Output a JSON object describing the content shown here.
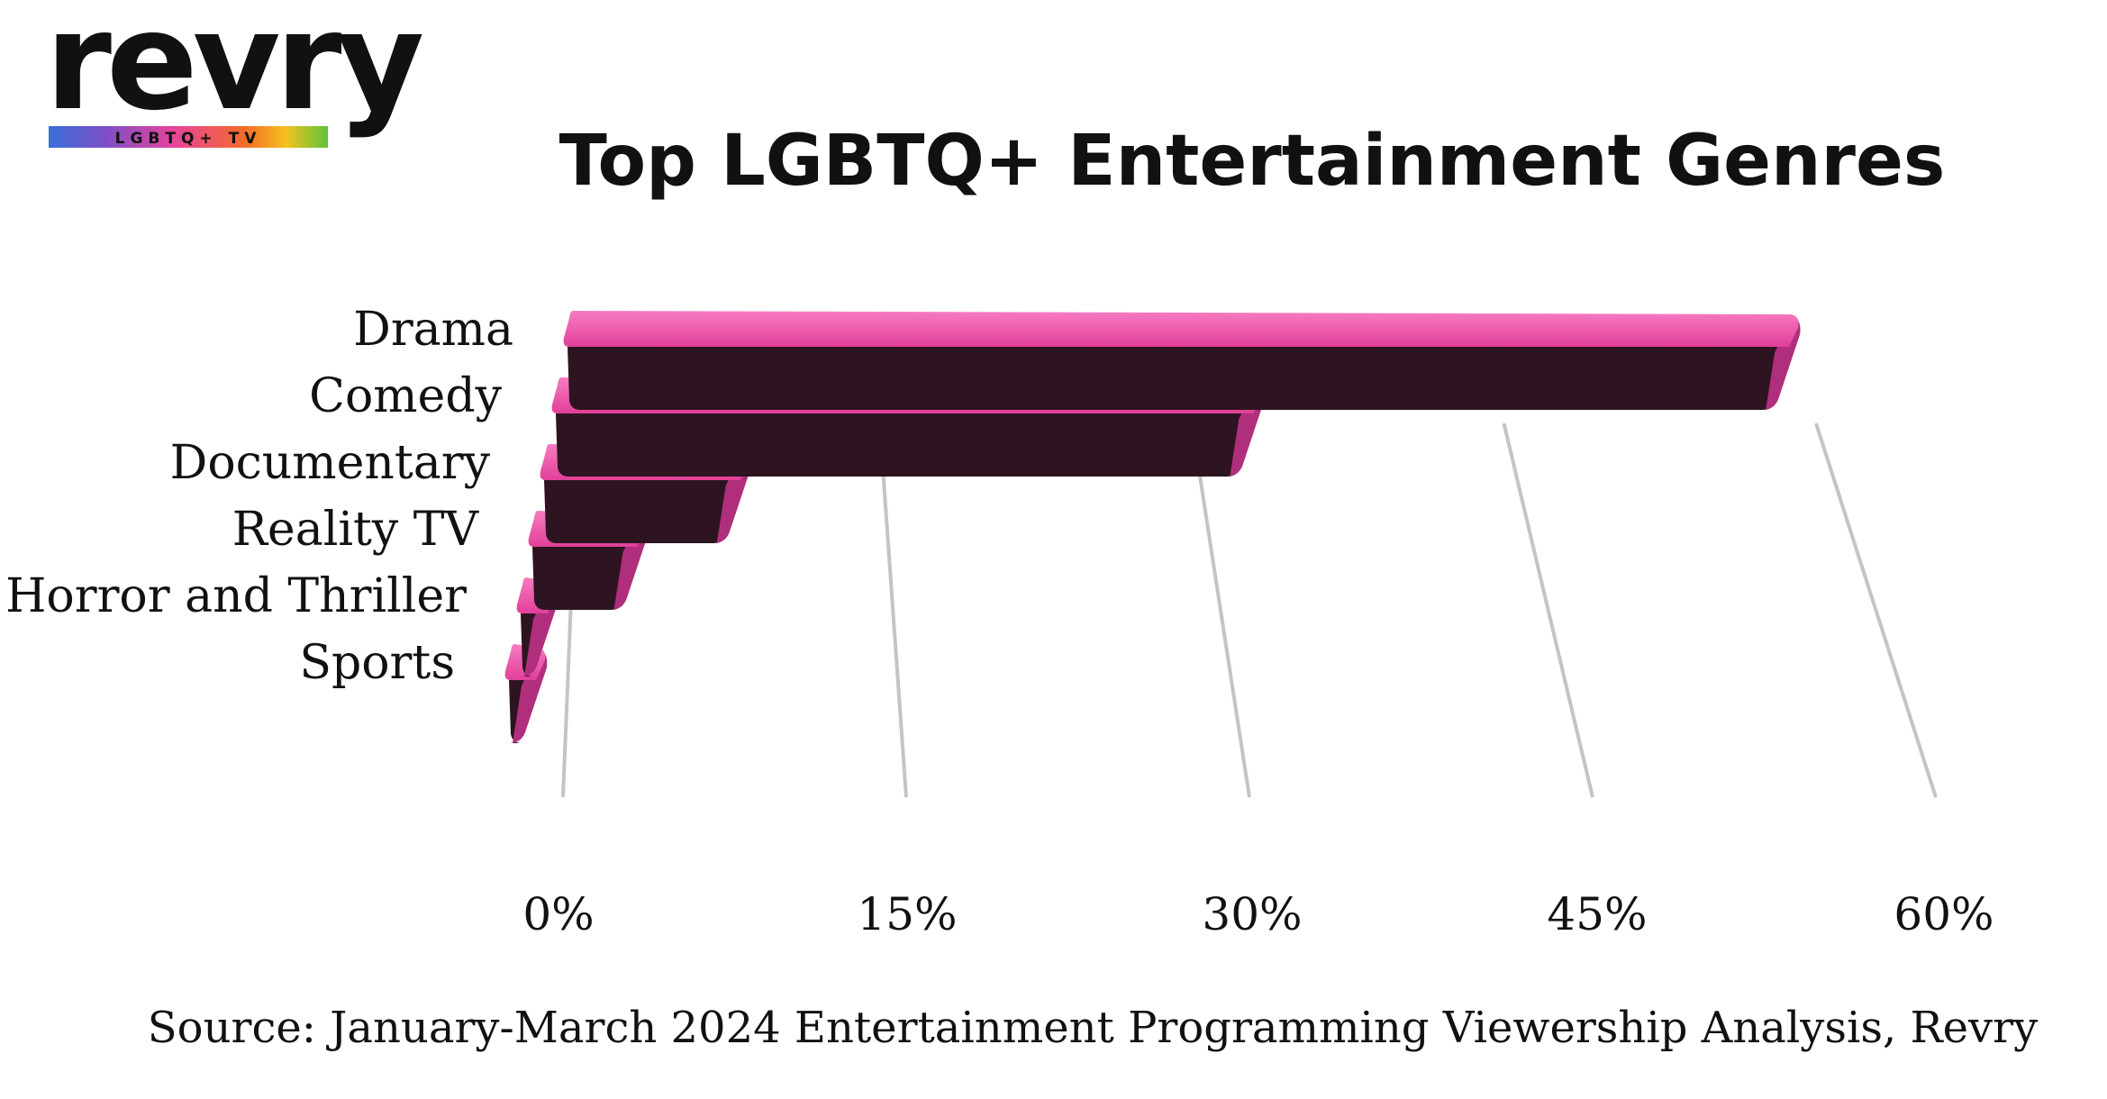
{
  "brand": {
    "name": "revry",
    "tagline": "LGBTQ+ TV",
    "rainbow": [
      "#3a6fd8",
      "#7b4fc9",
      "#e8439b",
      "#f36b2a",
      "#f4c21f",
      "#5ec23a"
    ]
  },
  "colors": {
    "bar_top": "#ec4aa6",
    "bar_top_highlight": "#f77cc2",
    "bar_front": "#2d1420",
    "bar_end": "#b02f7c",
    "grid": "#c4c4c4",
    "text": "#111111"
  },
  "chart_data": {
    "type": "bar",
    "orientation": "horizontal",
    "title": "Top LGBTQ+ Entertainment Genres",
    "categories": [
      "Drama",
      "Comedy",
      "Documentary",
      "Reality TV",
      "Horror and Thriller",
      "Sports"
    ],
    "values": [
      54,
      31,
      9,
      5,
      1.5,
      0.5
    ],
    "value_unit": "%",
    "xlim": [
      0,
      60
    ],
    "xticks": [
      0,
      15,
      30,
      45,
      60
    ],
    "xtick_labels": [
      "0%",
      "15%",
      "30%",
      "45%",
      "60%"
    ],
    "xlabel": "",
    "ylabel": "",
    "grid": true,
    "legend": "none",
    "source": "Source: January-March 2024 Entertainment Programming Viewership Analysis, Revry"
  }
}
